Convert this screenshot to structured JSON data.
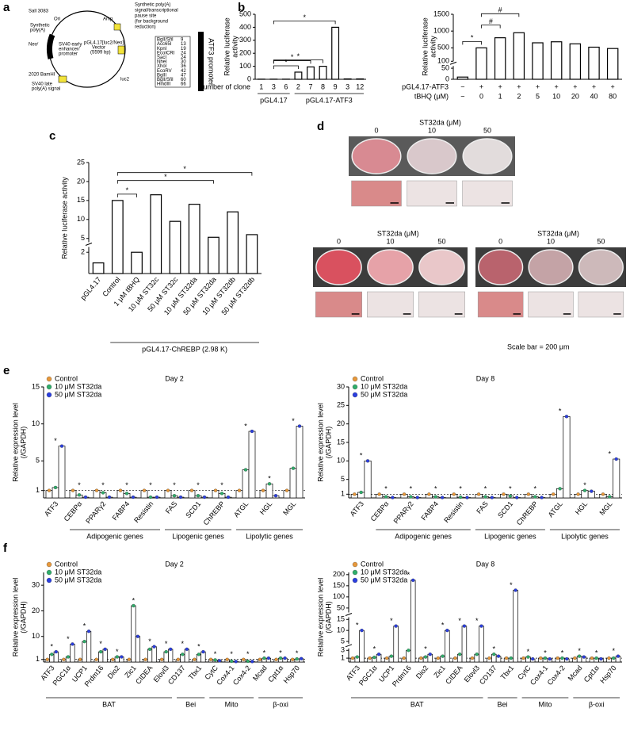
{
  "panel_labels": [
    "a",
    "b",
    "c",
    "d",
    "e",
    "f"
  ],
  "plasmid": {
    "labels": [
      "Synthetic poly(A)",
      "signal/transcriptional",
      "pause site",
      "(for background",
      "reduction)",
      "Amp",
      "Ori",
      "Sall 3083",
      "Synthetic",
      "poly(A)",
      "Neoʳ",
      "SV40 early",
      "enhancer/",
      "promoter",
      "pGL4.17[luc2/Neo]",
      "Vector",
      "(5599 bp)",
      "2020 BamHI",
      "SV40 late",
      "poly(A) signal",
      "luc2",
      "ATF3 promoter"
    ],
    "sites": [
      "BglI/SfiI",
      "Acc65I",
      "KpnI",
      "EcoICRI",
      "SacI",
      "NheI",
      "XhoI",
      "EcoRV",
      "BglII",
      "BglI/SfiI",
      "HindIII"
    ],
    "positions": [
      "9",
      "13",
      "19",
      "24",
      "24",
      "30",
      "36",
      "42",
      "47",
      "60",
      "66"
    ]
  },
  "photos": {
    "groups": [
      {
        "title": "ST32da (μM)",
        "doses": [
          "0",
          "10",
          "50"
        ]
      },
      {
        "title": "ST32da (μM)",
        "doses": [
          "0",
          "10",
          "50"
        ]
      },
      {
        "title": "ST32da (μM)",
        "doses": [
          "0",
          "10",
          "50"
        ]
      }
    ],
    "scale_note": "Scale bar = 200 μm"
  },
  "chart_data": [
    {
      "type": "bar",
      "categories": [
        "1",
        "3",
        "6",
        "2",
        "7",
        "8",
        "9",
        "3",
        "12"
      ],
      "values": [
        1,
        1,
        1,
        55,
        95,
        100,
        400,
        3,
        3
      ],
      "ylim": [
        0,
        500
      ],
      "yticks": [
        0,
        100,
        200,
        300,
        400,
        500
      ],
      "ylabel": [
        "Relative luciferase",
        "activity"
      ],
      "xlabel": "Number of clone",
      "groups": [
        {
          "label": "pGL4.17"
        },
        {
          "label": "pGL4.17-ATF3"
        }
      ],
      "comparisons": [
        {
          "pair": [
            1,
            3
          ],
          "label": "*"
        },
        {
          "pair": [
            1,
            4
          ],
          "label": "*"
        },
        {
          "pair": [
            1,
            5
          ],
          "label": "*"
        },
        {
          "pair": [
            1,
            6
          ],
          "label": "*"
        }
      ]
    },
    {
      "type": "bar",
      "categories": [
        "−",
        "0",
        "1",
        "2",
        "5",
        "10",
        "20",
        "40",
        "80"
      ],
      "atf3_row": [
        "−",
        "+",
        "+",
        "+",
        "+",
        "+",
        "+",
        "+",
        "+"
      ],
      "row_labels": [
        "pGL4.17-ATF3",
        "tBHQ (μM)"
      ],
      "values": [
        10,
        500,
        800,
        950,
        650,
        680,
        620,
        520,
        480
      ],
      "ylim": [
        0,
        1500
      ],
      "ysegments": [
        [
          0,
          60
        ],
        [
          100,
          1500
        ]
      ],
      "yticks": [
        0,
        50,
        100,
        500,
        1000,
        1500
      ],
      "ylabel": [
        "Relative luciferase",
        "activity"
      ],
      "comparisons": [
        {
          "pair": [
            0,
            1
          ],
          "label": "*"
        },
        {
          "pair": [
            1,
            2
          ],
          "label": "#"
        },
        {
          "pair": [
            1,
            3
          ],
          "label": "#"
        }
      ]
    },
    {
      "type": "bar",
      "categories": [
        "pGL4.17",
        "Control",
        "1 μM tBHQ",
        "10 μM ST32c",
        "50 μM ST32c",
        "10 μM ST32da",
        "50 μM ST32da",
        "10 μM ST32db",
        "50 μM ST32db"
      ],
      "values": [
        1,
        15,
        2,
        16.5,
        9.5,
        14,
        5.3,
        12,
        6
      ],
      "ylim": [
        0,
        25
      ],
      "ysegments": [
        [
          0,
          2.5
        ],
        [
          4,
          25
        ]
      ],
      "yticks": [
        2,
        5,
        10,
        15,
        20,
        25
      ],
      "ylabel": [
        "Relative luciferase activity"
      ],
      "groups": [
        {
          "label": "pGL4.17-ChREBP (2.98 K)"
        }
      ],
      "comparisons": [
        {
          "pair": [
            1,
            2
          ],
          "label": "*"
        },
        {
          "pair": [
            1,
            6
          ],
          "label": "*"
        },
        {
          "pair": [
            1,
            8
          ],
          "label": "*"
        }
      ]
    },
    {
      "type": "grouped_bar",
      "title": "Day 2",
      "categories": [
        "ATF3",
        "CEBPα",
        "PPARγ2",
        "FABP4",
        "Resistin",
        "FAS",
        "SCD1",
        "ChREBP",
        "ATGL",
        "HGL",
        "MGL"
      ],
      "series": [
        {
          "name": "Control",
          "color": "#e8983a",
          "values": [
            1,
            1,
            1,
            1,
            1,
            1,
            1,
            1,
            1,
            1,
            1
          ]
        },
        {
          "name": "10 μM ST32da",
          "color": "#2fae6b",
          "values": [
            1.4,
            0.4,
            0.7,
            0.6,
            0.1,
            0.3,
            0.3,
            0.6,
            3.8,
            1.9,
            4.0
          ]
        },
        {
          "name": "50 μM ST32da",
          "color": "#2a3ee0",
          "values": [
            7.0,
            0.1,
            0.1,
            0.1,
            0.1,
            0.1,
            0.1,
            0.1,
            9.0,
            0.3,
            9.7
          ]
        }
      ],
      "ylim": [
        0,
        15
      ],
      "yticks": [
        1,
        5,
        10,
        15
      ],
      "ref_line": 1,
      "ylabel": [
        "Relative expression level",
        "(/GAPDH)"
      ],
      "groups": [
        {
          "label": "Adipogenic genes"
        },
        {
          "label": "Lipogenic genes"
        },
        {
          "label": "Lipolytic genes"
        }
      ],
      "significant": [
        true,
        true,
        true,
        true,
        true,
        true,
        true,
        true,
        true,
        true,
        true
      ],
      "star_label": "*"
    },
    {
      "type": "grouped_bar",
      "title": "Day 8",
      "categories": [
        "ATF3",
        "CEBPα",
        "PPARγ2",
        "FABP4",
        "Resistin",
        "FAS",
        "SCD1",
        "ChREBP",
        "ATGL",
        "HGL",
        "MGL"
      ],
      "series": [
        {
          "name": "Control",
          "color": "#e8983a",
          "values": [
            1,
            1,
            1,
            1,
            1,
            1,
            1,
            1,
            1,
            1,
            1
          ]
        },
        {
          "name": "10 μM ST32da",
          "color": "#2fae6b",
          "values": [
            1.5,
            0.3,
            0.3,
            0.3,
            0.2,
            0.3,
            0.5,
            0.3,
            2.5,
            2.0,
            0.3
          ]
        },
        {
          "name": "50 μM ST32da",
          "color": "#2a3ee0",
          "values": [
            10,
            0.1,
            0.1,
            0.1,
            0.1,
            0.1,
            0.1,
            0.1,
            22,
            1.8,
            10.5
          ]
        }
      ],
      "ylim": [
        0,
        30
      ],
      "yticks": [
        1,
        5,
        10,
        15,
        20,
        25,
        30
      ],
      "ref_line": 1,
      "ylabel": [
        "Relative expression level",
        "(/GAPDH)"
      ],
      "groups": [
        {
          "label": "Adipogenic genes"
        },
        {
          "label": "Lipogenic genes"
        },
        {
          "label": "Lipolytic genes"
        }
      ],
      "significant": [
        true,
        true,
        true,
        true,
        true,
        true,
        true,
        true,
        true,
        true,
        true
      ],
      "star_label": "*"
    },
    {
      "type": "grouped_bar",
      "title": "Day 2",
      "categories": [
        "ATF3",
        "PGC1α",
        "UCP1",
        "Prdm16",
        "Dio2",
        "Zic1",
        "CIDEA",
        "Elovl3",
        "CD137",
        "Tbx1",
        "CytC",
        "Cox4-1",
        "Cox4-2",
        "Mcad",
        "Cpt1α",
        "Hsp70"
      ],
      "series": [
        {
          "name": "Control",
          "color": "#e8983a",
          "values": [
            1,
            1,
            1,
            1,
            1,
            1,
            1,
            1,
            1,
            1,
            1,
            1,
            1,
            1,
            1,
            1
          ]
        },
        {
          "name": "10 μM ST32da",
          "color": "#2fae6b",
          "values": [
            3,
            2,
            8,
            4,
            2,
            22,
            5,
            4,
            3,
            3,
            0.8,
            0.3,
            0.3,
            1.5,
            1.5,
            1.2
          ]
        },
        {
          "name": "50 μM ST32da",
          "color": "#2a3ee0",
          "values": [
            4,
            7,
            12,
            5,
            2,
            10,
            6,
            5,
            5,
            4,
            0.5,
            0.2,
            0.2,
            1.5,
            1.5,
            1.3
          ]
        }
      ],
      "ylim": [
        0,
        35
      ],
      "yticks": [
        1,
        10,
        20,
        30
      ],
      "ref_line": 1,
      "ylabel": [
        "Relative expression level",
        "(/GAPDH)"
      ],
      "groups": [
        {
          "label": "BAT"
        },
        {
          "label": "Bei"
        },
        {
          "label": "Mito"
        },
        {
          "label": "β-oxi"
        }
      ],
      "significant": [
        true,
        true,
        true,
        true,
        true,
        true,
        true,
        true,
        true,
        true,
        true,
        true,
        true,
        true,
        true,
        true
      ],
      "star_label": "*"
    },
    {
      "type": "grouped_bar",
      "title": "Day 8",
      "categories": [
        "ATF3",
        "PGC1α",
        "UCP1",
        "Prdm16",
        "Dio2",
        "Zic1",
        "CIDEA",
        "Elovl3",
        "CD137",
        "Tbx1",
        "CytC",
        "Cox4-1",
        "Cox4-2",
        "Mcad",
        "Cpt1α",
        "Hsp70"
      ],
      "series": [
        {
          "name": "Control",
          "color": "#e8983a",
          "values": [
            1,
            1,
            1,
            1,
            1,
            1,
            1,
            1,
            1,
            1,
            1,
            1,
            1,
            1,
            1,
            1
          ]
        },
        {
          "name": "10 μM ST32da",
          "color": "#2fae6b",
          "values": [
            1.3,
            1.2,
            1.5,
            3,
            1.3,
            1.5,
            2,
            2,
            2,
            1,
            1.3,
            1,
            1,
            1.5,
            1,
            1
          ]
        },
        {
          "name": "50 μM ST32da",
          "color": "#2a3ee0",
          "values": [
            10,
            2,
            12,
            175,
            2,
            10,
            12,
            12,
            1.5,
            130,
            0.8,
            0.8,
            0.8,
            1.3,
            0.8,
            1.5
          ]
        }
      ],
      "ylim": [
        0,
        210
      ],
      "ysegments": [
        [
          0,
          3.5
        ],
        [
          4,
          16
        ],
        [
          30,
          210
        ]
      ],
      "yticks": [
        1,
        3,
        5,
        10,
        15,
        50,
        100,
        150,
        200
      ],
      "ref_line": 1,
      "ylabel": [
        "Relative expression level",
        "(/GAPDH)"
      ],
      "groups": [
        {
          "label": "BAT"
        },
        {
          "label": "Bei"
        },
        {
          "label": "Mito"
        },
        {
          "label": "β-oxi"
        }
      ],
      "significant": [
        true,
        true,
        true,
        true,
        true,
        true,
        true,
        true,
        true,
        true,
        true,
        true,
        true,
        true,
        true,
        true
      ],
      "star_label": "*"
    }
  ]
}
